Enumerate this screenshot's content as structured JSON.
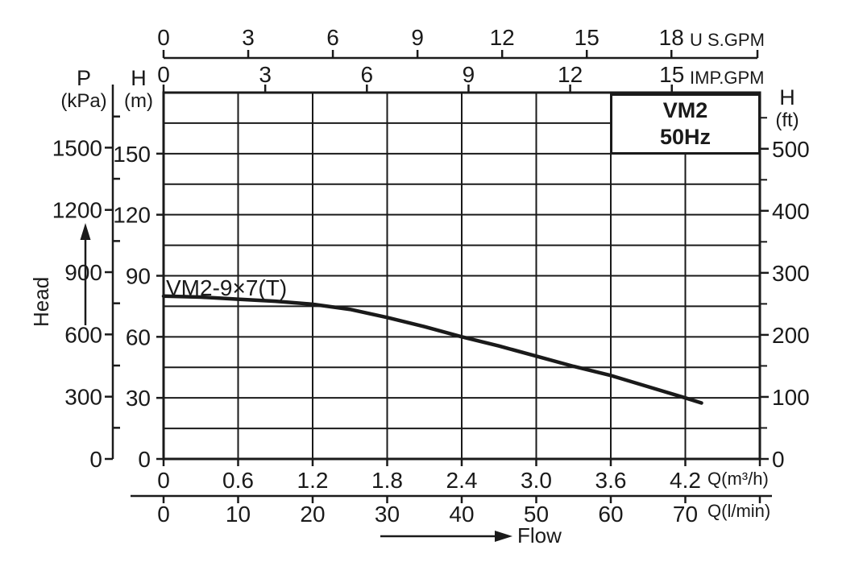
{
  "chart_data": {
    "type": "line",
    "model_box": {
      "model": "VM2",
      "frequency": "50Hz"
    },
    "curve": {
      "label": "VM2-9×7(T)",
      "points_q_m3h": [
        0,
        0.3,
        0.6,
        0.9,
        1.2,
        1.5,
        1.8,
        2.1,
        2.4,
        2.7,
        3.0,
        3.3,
        3.6,
        3.9,
        4.2,
        4.33
      ],
      "points_head_m": [
        80,
        79.5,
        78.5,
        77.5,
        76,
        73.5,
        69.5,
        65,
        60,
        55.5,
        50.5,
        45.5,
        41,
        35.5,
        30,
        27.5
      ]
    },
    "x_axes": {
      "us_gpm": {
        "title": "U S.GPM",
        "tick_labels": [
          "0",
          "3",
          "6",
          "9",
          "12",
          "15",
          "18"
        ],
        "m3h_per_unit": 0.22712
      },
      "imp_gpm": {
        "title": "IMP.GPM",
        "tick_labels": [
          "0",
          "3",
          "6",
          "9",
          "12",
          "15"
        ],
        "m3h_per_unit": 0.27276
      },
      "q_m3h": {
        "title": "Q(m³/h)",
        "tick_labels": [
          "0",
          "0.6",
          "1.2",
          "1.8",
          "2.4",
          "3.0",
          "3.6",
          "4.2"
        ],
        "range": [
          0,
          4.8
        ],
        "grid_step": 0.6
      },
      "q_lmin": {
        "title": "Q(l/min)",
        "tick_labels": [
          "0",
          "10",
          "20",
          "30",
          "40",
          "50",
          "60",
          "70"
        ],
        "m3h_per_unit": 0.06
      }
    },
    "y_axes": {
      "p_kpa": {
        "letter": "P",
        "unit": "(kPa)",
        "tick_labels": [
          "0",
          "300",
          "600",
          "900",
          "1200",
          "1500"
        ],
        "minor_step": 150,
        "axis_max": 1800,
        "kpa_per_m": 9.807
      },
      "h_m": {
        "letter": "H",
        "unit": "(m)",
        "tick_labels": [
          "0",
          "30",
          "60",
          "90",
          "120",
          "150"
        ],
        "range": [
          0,
          180
        ],
        "grid_step": 15
      },
      "h_ft": {
        "letter": "H",
        "unit": "(ft)",
        "tick_labels": [
          "0",
          "100",
          "200",
          "300",
          "400",
          "500"
        ],
        "minor_step": 50,
        "axis_max": 550,
        "m_per_ft": 0.3048
      }
    },
    "annotations": {
      "head_arrow": "Head",
      "flow_arrow": "Flow"
    },
    "colors": {
      "ink": "#1a1a1a",
      "background": "#ffffff"
    }
  }
}
